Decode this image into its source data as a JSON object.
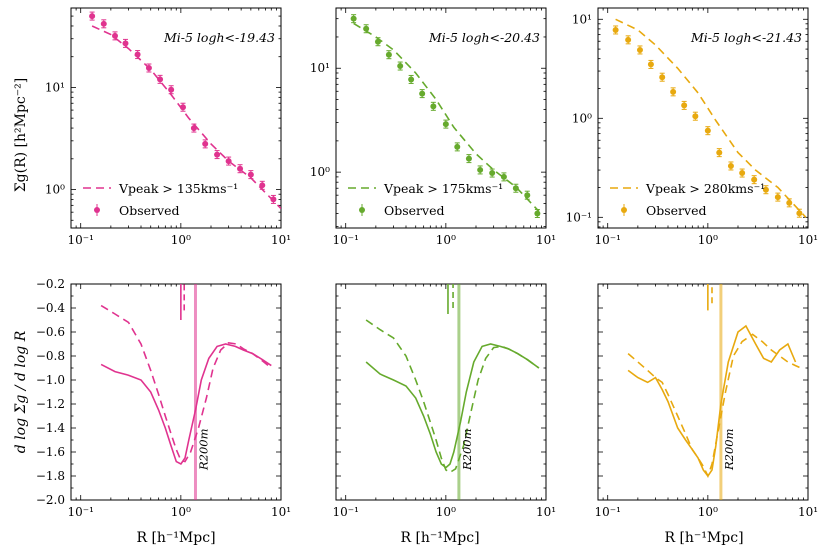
{
  "figure": {
    "top_ylabel": "Σg(R) [h²Mpc⁻²]",
    "bottom_ylabel": "d log Σg / d log R",
    "xlabel": "R [h⁻¹Mpc]",
    "observed_label": "Observed",
    "r200_label": "R200m"
  },
  "chart_data": [
    {
      "type": "scatter",
      "panel": "top-left",
      "title": "Mi-5 logh<-19.43",
      "color": "#e0338f",
      "model_label": "Vpeak > 135kms⁻¹",
      "xscale": "log",
      "yscale": "log",
      "xlim": [
        0.08,
        10
      ],
      "ylim": [
        0.42,
        60
      ],
      "xticks": [
        0.1,
        1,
        10
      ],
      "xtick_labels": [
        "10⁻¹",
        "10⁰",
        "10¹"
      ],
      "yticks": [
        1,
        10
      ],
      "ytick_labels": [
        "10⁰",
        "10¹"
      ],
      "observed": {
        "x": [
          0.13,
          0.17,
          0.22,
          0.28,
          0.37,
          0.48,
          0.62,
          0.8,
          1.05,
          1.35,
          1.75,
          2.3,
          3.0,
          3.9,
          5.0,
          6.5,
          8.4
        ],
        "y": [
          50,
          42,
          32,
          27,
          21,
          15.5,
          12,
          9.5,
          6.4,
          4.0,
          2.8,
          2.2,
          1.9,
          1.6,
          1.4,
          1.1,
          0.8
        ]
      },
      "model": {
        "x": [
          0.13,
          0.2,
          0.3,
          0.5,
          0.8,
          1.2,
          2.0,
          3.0,
          5.0,
          10
        ],
        "y": [
          40,
          33,
          24,
          15,
          8.5,
          5.0,
          2.8,
          1.9,
          1.3,
          0.65
        ]
      }
    },
    {
      "type": "scatter",
      "panel": "top-middle",
      "title": "Mi-5 logh<-20.43",
      "color": "#66aa2d",
      "model_label": "Vpeak > 175kms⁻¹",
      "xscale": "log",
      "yscale": "log",
      "xlim": [
        0.08,
        10
      ],
      "ylim": [
        0.29,
        38
      ],
      "xticks": [
        0.1,
        1,
        10
      ],
      "xtick_labels": [
        "10⁻¹",
        "10⁰",
        "10¹"
      ],
      "yticks": [
        1,
        10
      ],
      "ytick_labels": [
        "10⁰",
        "10¹"
      ],
      "observed": {
        "x": [
          0.12,
          0.16,
          0.21,
          0.27,
          0.35,
          0.45,
          0.58,
          0.75,
          1.0,
          1.3,
          1.7,
          2.2,
          2.9,
          3.8,
          5.0,
          6.5,
          8.2
        ],
        "y": [
          30,
          24,
          18,
          13.5,
          10.5,
          7.8,
          5.7,
          4.3,
          2.9,
          1.75,
          1.35,
          1.05,
          0.98,
          0.9,
          0.7,
          0.6,
          0.4
        ]
      },
      "model": {
        "x": [
          0.12,
          0.2,
          0.3,
          0.5,
          0.8,
          1.2,
          2.0,
          3.0,
          5.0,
          8.5
        ],
        "y": [
          27,
          20,
          15,
          9.0,
          5.0,
          2.7,
          1.5,
          1.05,
          0.72,
          0.42
        ]
      }
    },
    {
      "type": "scatter",
      "panel": "top-right",
      "title": "Mi-5 logh<-21.43",
      "color": "#e8a90f",
      "model_label": "Vpeak > 280kms⁻¹",
      "xscale": "log",
      "yscale": "log",
      "xlim": [
        0.08,
        10
      ],
      "ylim": [
        0.078,
        13
      ],
      "xticks": [
        0.1,
        1,
        10
      ],
      "xtick_labels": [
        "10⁻¹",
        "10⁰",
        "10¹"
      ],
      "yticks": [
        0.1,
        1,
        10
      ],
      "ytick_labels": [
        "10⁻¹",
        "10⁰",
        "10¹"
      ],
      "observed": {
        "x": [
          0.12,
          0.16,
          0.21,
          0.27,
          0.35,
          0.45,
          0.58,
          0.75,
          1.0,
          1.3,
          1.7,
          2.2,
          2.9,
          3.8,
          5.0,
          6.5,
          8.2
        ],
        "y": [
          7.8,
          6.2,
          4.9,
          3.5,
          2.6,
          1.85,
          1.35,
          1.05,
          0.75,
          0.45,
          0.33,
          0.28,
          0.24,
          0.19,
          0.16,
          0.14,
          0.11
        ]
      },
      "model": {
        "x": [
          0.12,
          0.2,
          0.3,
          0.5,
          0.8,
          1.2,
          2.0,
          3.0,
          5.0,
          9.5
        ],
        "y": [
          10,
          7.8,
          5.5,
          3.2,
          1.8,
          0.95,
          0.45,
          0.3,
          0.2,
          0.1
        ]
      }
    },
    {
      "type": "line",
      "panel": "bottom-left",
      "color": "#e0338f",
      "xscale": "log",
      "xlim": [
        0.08,
        10
      ],
      "ylim": [
        -2.0,
        -0.2
      ],
      "xticks": [
        0.1,
        1,
        10
      ],
      "xtick_labels": [
        "10⁻¹",
        "10⁰",
        "10¹"
      ],
      "yticks": [
        -2.0,
        -1.8,
        -1.6,
        -1.4,
        -1.2,
        -1.0,
        -0.8,
        -0.6,
        -0.4,
        -0.2
      ],
      "ytick_labels": [
        "−2.0",
        "−1.8",
        "−1.6",
        "−1.4",
        "−1.2",
        "−1.0",
        "−0.8",
        "−0.6",
        "−0.4",
        "−0.2"
      ],
      "r200m": 1.4,
      "observed_slope": {
        "x": [
          0.16,
          0.22,
          0.3,
          0.4,
          0.5,
          0.6,
          0.7,
          0.8,
          0.9,
          1.0,
          1.1,
          1.2,
          1.4,
          1.6,
          1.9,
          2.3,
          2.8,
          3.5,
          4.2,
          5.2,
          6.5,
          8.0
        ],
        "y": [
          -0.87,
          -0.93,
          -0.96,
          -1.0,
          -1.1,
          -1.25,
          -1.4,
          -1.55,
          -1.68,
          -1.7,
          -1.65,
          -1.5,
          -1.25,
          -1.0,
          -0.82,
          -0.72,
          -0.7,
          -0.72,
          -0.75,
          -0.78,
          -0.83,
          -0.88
        ]
      },
      "model_slope": {
        "x": [
          0.16,
          0.22,
          0.3,
          0.4,
          0.5,
          0.6,
          0.7,
          0.8,
          0.9,
          1.0,
          1.1,
          1.25,
          1.5,
          1.8,
          2.1,
          2.5,
          3.0,
          3.6,
          4.2,
          5.2,
          6.5,
          8.0
        ],
        "y": [
          -0.38,
          -0.45,
          -0.52,
          -0.7,
          -0.92,
          -1.12,
          -1.3,
          -1.45,
          -1.58,
          -1.67,
          -1.68,
          -1.6,
          -1.4,
          -1.15,
          -0.9,
          -0.75,
          -0.69,
          -0.7,
          -0.74,
          -0.78,
          -0.84,
          -0.9
        ]
      },
      "vertical_ticks": [
        {
          "x": 1.0,
          "y0": -0.5,
          "y1": -0.2,
          "dashed": false
        },
        {
          "x": 1.08,
          "y0": -0.42,
          "y1": -0.2,
          "dashed": true
        }
      ]
    },
    {
      "type": "line",
      "panel": "bottom-middle",
      "color": "#66aa2d",
      "xscale": "log",
      "xlim": [
        0.08,
        10
      ],
      "ylim": [
        -2.0,
        -0.2
      ],
      "xticks": [
        0.1,
        1,
        10
      ],
      "xtick_labels": [
        "10⁻¹",
        "10⁰",
        "10¹"
      ],
      "yticks": [],
      "ytick_labels": [],
      "r200m": 1.35,
      "observed_slope": {
        "x": [
          0.16,
          0.22,
          0.3,
          0.4,
          0.5,
          0.6,
          0.7,
          0.8,
          0.9,
          1.0,
          1.1,
          1.2,
          1.4,
          1.6,
          1.9,
          2.3,
          2.8,
          3.5,
          4.2,
          5.2,
          6.5,
          8.5
        ],
        "y": [
          -0.85,
          -0.95,
          -1.0,
          -1.05,
          -1.15,
          -1.3,
          -1.45,
          -1.6,
          -1.7,
          -1.73,
          -1.7,
          -1.6,
          -1.35,
          -1.1,
          -0.85,
          -0.72,
          -0.7,
          -0.72,
          -0.74,
          -0.78,
          -0.83,
          -0.9
        ]
      },
      "model_slope": {
        "x": [
          0.16,
          0.22,
          0.3,
          0.4,
          0.5,
          0.6,
          0.7,
          0.8,
          0.9,
          1.0,
          1.1,
          1.25,
          1.5,
          1.8,
          2.1,
          2.5,
          3.0,
          3.6,
          4.2,
          5.2,
          6.5,
          8.5
        ],
        "y": [
          -0.5,
          -0.58,
          -0.65,
          -0.8,
          -1.0,
          -1.18,
          -1.35,
          -1.5,
          -1.65,
          -1.75,
          -1.77,
          -1.74,
          -1.55,
          -1.25,
          -1.0,
          -0.82,
          -0.73,
          -0.72,
          -0.74,
          -0.78,
          -0.83,
          -0.9
        ]
      },
      "vertical_ticks": [
        {
          "x": 1.05,
          "y0": -0.45,
          "y1": -0.2,
          "dashed": false
        },
        {
          "x": 1.18,
          "y0": -0.4,
          "y1": -0.2,
          "dashed": true
        }
      ]
    },
    {
      "type": "line",
      "panel": "bottom-right",
      "color": "#e8a90f",
      "xscale": "log",
      "xlim": [
        0.08,
        10
      ],
      "ylim": [
        -2.0,
        -0.2
      ],
      "xticks": [
        0.1,
        1,
        10
      ],
      "xtick_labels": [
        "10⁻¹",
        "10⁰",
        "10¹"
      ],
      "yticks": [],
      "ytick_labels": [],
      "r200m": 1.35,
      "observed_slope": {
        "x": [
          0.16,
          0.2,
          0.25,
          0.3,
          0.35,
          0.4,
          0.5,
          0.6,
          0.7,
          0.8,
          0.9,
          1.0,
          1.1,
          1.2,
          1.35,
          1.6,
          2.0,
          2.4,
          3.0,
          3.6,
          4.3,
          5.2,
          6.3,
          7.5
        ],
        "y": [
          -0.92,
          -0.98,
          -1.02,
          -0.98,
          -1.08,
          -1.18,
          -1.4,
          -1.5,
          -1.58,
          -1.65,
          -1.75,
          -1.8,
          -1.75,
          -1.55,
          -1.2,
          -0.85,
          -0.6,
          -0.55,
          -0.7,
          -0.82,
          -0.85,
          -0.75,
          -0.7,
          -0.85
        ]
      },
      "model_slope": {
        "x": [
          0.16,
          0.2,
          0.25,
          0.3,
          0.35,
          0.4,
          0.5,
          0.6,
          0.7,
          0.8,
          0.9,
          1.0,
          1.1,
          1.25,
          1.5,
          1.8,
          2.2,
          2.8,
          3.5,
          4.3,
          5.2,
          6.3,
          7.5,
          8.5
        ],
        "y": [
          -0.78,
          -0.85,
          -0.92,
          -0.98,
          -1.02,
          -1.12,
          -1.3,
          -1.45,
          -1.58,
          -1.65,
          -1.72,
          -1.8,
          -1.7,
          -1.45,
          -1.1,
          -0.8,
          -0.68,
          -0.62,
          -0.68,
          -0.75,
          -0.8,
          -0.85,
          -0.88,
          -0.9
        ]
      },
      "vertical_ticks": [
        {
          "x": 1.0,
          "y0": -0.42,
          "y1": -0.2,
          "dashed": false
        },
        {
          "x": 1.1,
          "y0": -0.36,
          "y1": -0.2,
          "dashed": true
        }
      ]
    }
  ]
}
